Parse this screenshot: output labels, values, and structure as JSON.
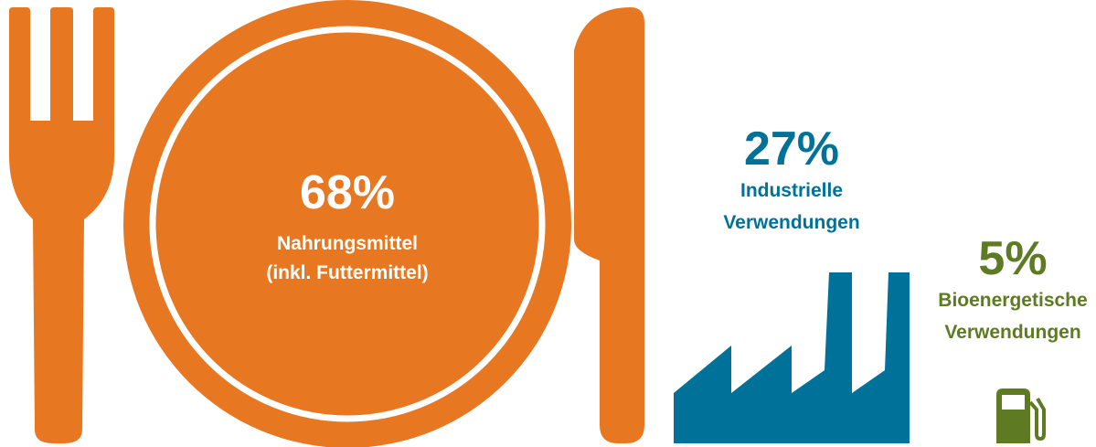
{
  "items": [
    {
      "value": "68%",
      "label": [
        "Nahrungsmittel",
        "(inkl. Futtermittel)"
      ]
    },
    {
      "value": "27%",
      "label": [
        "Industrielle",
        "Verwendungen"
      ]
    },
    {
      "value": "5%",
      "label": [
        "Bioenergetische",
        "Verwendungen"
      ]
    }
  ]
}
